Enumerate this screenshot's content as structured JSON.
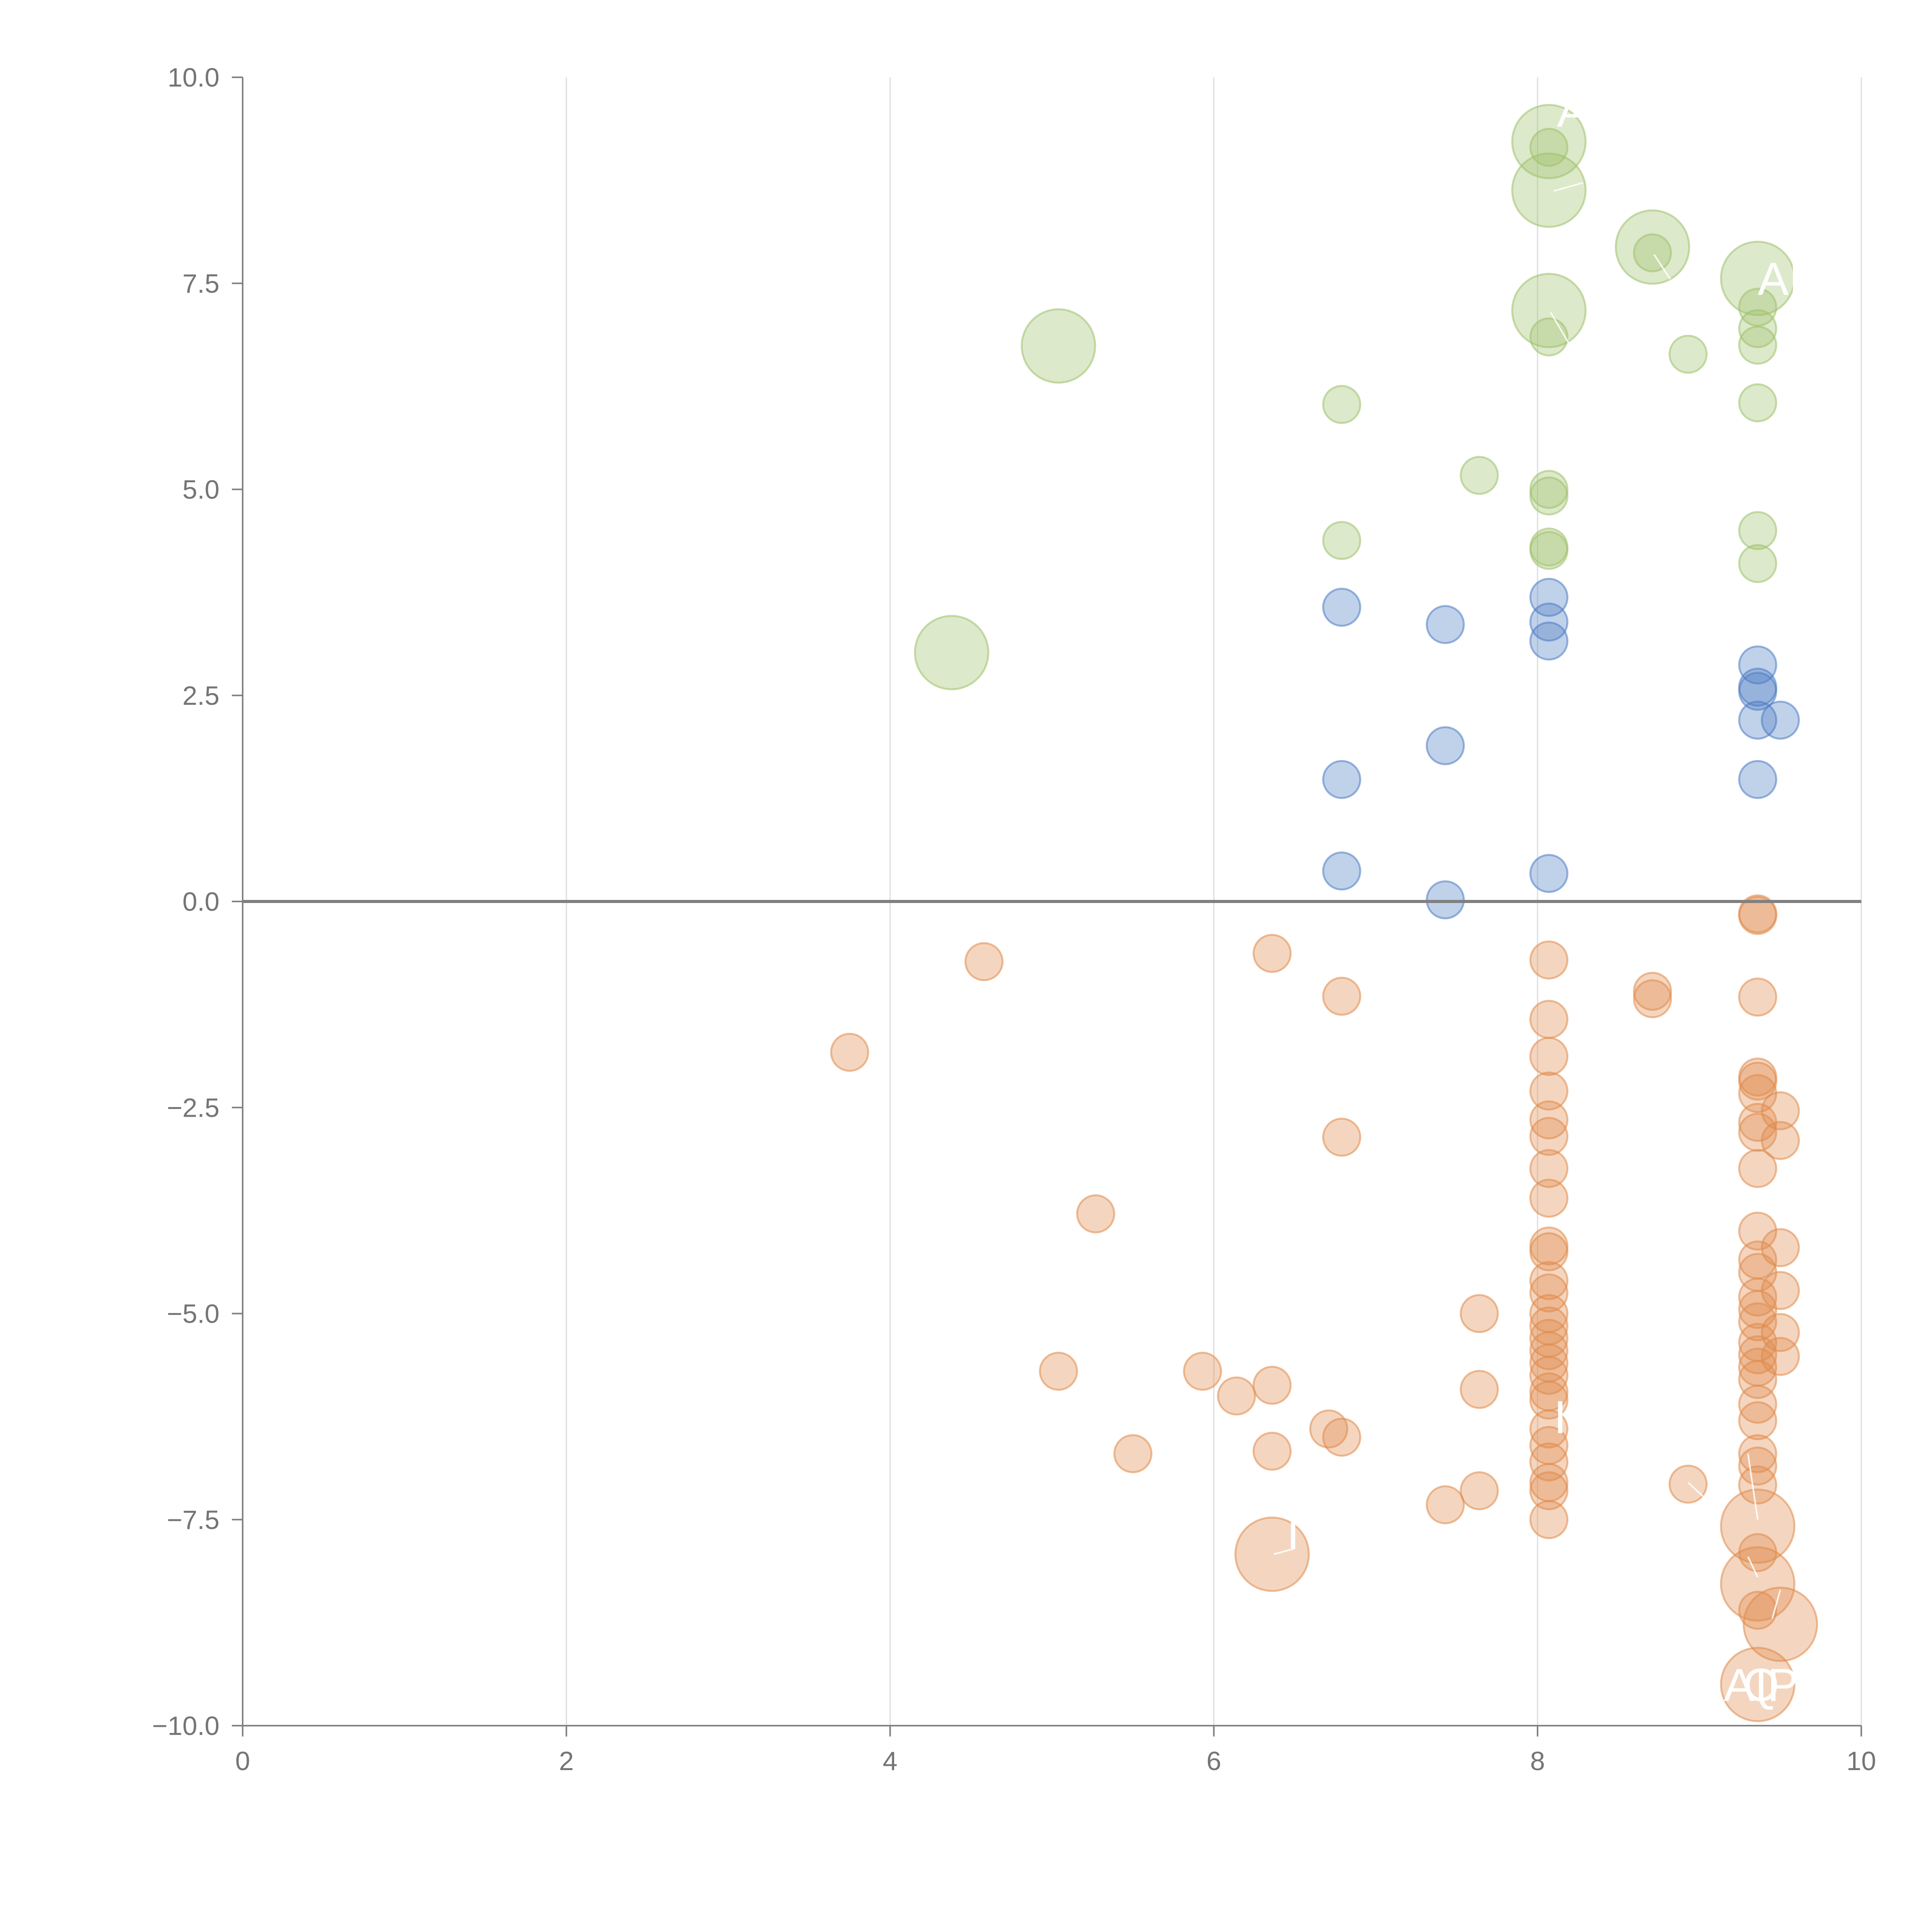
{
  "chart_data": {
    "type": "scatter",
    "title": "",
    "xlabel": "",
    "ylabel": "",
    "xlim": [
      0,
      10
    ],
    "ylim": [
      -10,
      10
    ],
    "x_ticks": [
      "0",
      "2",
      "4",
      "6",
      "8",
      "10"
    ],
    "y_ticks": [
      "10.0",
      "7.5",
      "5.0",
      "2.5",
      "0.0",
      "−2.5",
      "−5.0",
      "−7.5",
      "−10.0"
    ],
    "grid": "vertical",
    "zero_line": true,
    "series": [
      {
        "name": "green",
        "color": "#9dc16a",
        "points": [
          [
            8.07,
            9.22,
            3
          ],
          [
            8.07,
            9.15,
            1
          ],
          [
            8.07,
            8.63,
            3
          ],
          [
            8.71,
            7.94,
            3
          ],
          [
            8.71,
            7.87,
            1
          ],
          [
            9.36,
            7.56,
            3
          ],
          [
            9.36,
            7.21,
            1
          ],
          [
            8.07,
            7.17,
            3
          ],
          [
            9.36,
            6.95,
            1
          ],
          [
            8.07,
            6.85,
            1
          ],
          [
            9.36,
            6.75,
            1
          ],
          [
            5.04,
            6.74,
            3
          ],
          [
            8.93,
            6.64,
            1
          ],
          [
            6.79,
            6.03,
            1
          ],
          [
            9.36,
            6.05,
            1
          ],
          [
            7.64,
            5.17,
            1
          ],
          [
            8.07,
            5.0,
            1
          ],
          [
            8.07,
            4.92,
            1
          ],
          [
            9.36,
            4.5,
            1
          ],
          [
            6.79,
            4.38,
            1
          ],
          [
            8.07,
            4.3,
            1
          ],
          [
            8.07,
            4.26,
            1
          ],
          [
            9.36,
            4.1,
            1
          ],
          [
            4.38,
            3.02,
            3
          ]
        ]
      },
      {
        "name": "blue",
        "color": "#4a7cc2",
        "points": [
          [
            8.07,
            3.69,
            1
          ],
          [
            6.79,
            3.57,
            1
          ],
          [
            8.07,
            3.39,
            1
          ],
          [
            7.43,
            3.36,
            1
          ],
          [
            8.07,
            3.16,
            1
          ],
          [
            9.36,
            2.87,
            1
          ],
          [
            9.36,
            2.6,
            1
          ],
          [
            9.36,
            2.55,
            1
          ],
          [
            9.36,
            2.2,
            1
          ],
          [
            9.5,
            2.2,
            1
          ],
          [
            7.43,
            1.89,
            1
          ],
          [
            6.79,
            1.48,
            1
          ],
          [
            9.36,
            1.48,
            1
          ],
          [
            6.79,
            0.37,
            1
          ],
          [
            8.07,
            0.34,
            1
          ],
          [
            7.43,
            0.02,
            1
          ]
        ]
      },
      {
        "name": "orange",
        "color": "#e08a4a",
        "points": [
          [
            9.36,
            -0.15,
            1
          ],
          [
            9.36,
            -0.17,
            1
          ],
          [
            6.36,
            -0.63,
            1
          ],
          [
            4.58,
            -0.73,
            1
          ],
          [
            8.07,
            -0.71,
            1
          ],
          [
            8.71,
            -1.09,
            1
          ],
          [
            8.71,
            -1.18,
            1
          ],
          [
            6.79,
            -1.15,
            1
          ],
          [
            9.36,
            -1.16,
            1
          ],
          [
            8.07,
            -1.43,
            1
          ],
          [
            3.75,
            -1.83,
            1
          ],
          [
            8.07,
            -1.88,
            1
          ],
          [
            9.36,
            -2.13,
            1
          ],
          [
            9.36,
            -2.18,
            1
          ],
          [
            8.07,
            -2.3,
            1
          ],
          [
            9.36,
            -2.33,
            1
          ],
          [
            9.5,
            -2.54,
            1
          ],
          [
            8.07,
            -2.65,
            1
          ],
          [
            9.36,
            -2.68,
            1
          ],
          [
            9.36,
            -2.8,
            1
          ],
          [
            8.07,
            -2.85,
            1
          ],
          [
            6.79,
            -2.86,
            1
          ],
          [
            9.5,
            -2.9,
            1
          ],
          [
            8.07,
            -3.24,
            1
          ],
          [
            9.36,
            -3.24,
            1
          ],
          [
            8.07,
            -3.6,
            1
          ],
          [
            5.27,
            -3.79,
            1
          ],
          [
            9.36,
            -4.0,
            1
          ],
          [
            8.07,
            -4.18,
            1
          ],
          [
            8.07,
            -4.25,
            1
          ],
          [
            9.5,
            -4.2,
            1
          ],
          [
            9.36,
            -4.35,
            1
          ],
          [
            9.36,
            -4.5,
            1
          ],
          [
            8.07,
            -4.6,
            1
          ],
          [
            8.07,
            -4.75,
            1
          ],
          [
            9.5,
            -4.72,
            1
          ],
          [
            9.36,
            -4.8,
            1
          ],
          [
            9.36,
            -4.95,
            1
          ],
          [
            7.64,
            -5.0,
            1
          ],
          [
            8.07,
            -5.0,
            1
          ],
          [
            8.07,
            -5.15,
            1
          ],
          [
            9.36,
            -5.1,
            1
          ],
          [
            8.07,
            -5.3,
            1
          ],
          [
            9.5,
            -5.23,
            1
          ],
          [
            9.36,
            -5.35,
            1
          ],
          [
            8.07,
            -5.45,
            1
          ],
          [
            9.36,
            -5.5,
            1
          ],
          [
            8.07,
            -5.6,
            1
          ],
          [
            9.5,
            -5.52,
            1
          ],
          [
            9.36,
            -5.65,
            1
          ],
          [
            8.07,
            -5.75,
            1
          ],
          [
            9.36,
            -5.8,
            1
          ],
          [
            5.04,
            -5.7,
            1
          ],
          [
            5.93,
            -5.7,
            1
          ],
          [
            6.36,
            -5.87,
            1
          ],
          [
            7.64,
            -5.92,
            1
          ],
          [
            8.07,
            -5.95,
            1
          ],
          [
            6.14,
            -6.0,
            1
          ],
          [
            8.07,
            -6.05,
            1
          ],
          [
            9.36,
            -6.1,
            1
          ],
          [
            9.36,
            -6.3,
            1
          ],
          [
            8.07,
            -6.4,
            1
          ],
          [
            6.71,
            -6.4,
            1
          ],
          [
            6.79,
            -6.5,
            1
          ],
          [
            8.07,
            -6.6,
            1
          ],
          [
            9.36,
            -6.7,
            1
          ],
          [
            5.5,
            -6.7,
            1
          ],
          [
            6.36,
            -6.67,
            1
          ],
          [
            8.07,
            -6.8,
            1
          ],
          [
            9.36,
            -6.85,
            1
          ],
          [
            8.07,
            -7.05,
            1
          ],
          [
            8.93,
            -7.07,
            1
          ],
          [
            9.36,
            -7.08,
            1
          ],
          [
            8.07,
            -7.15,
            1
          ],
          [
            7.64,
            -7.15,
            1
          ],
          [
            7.43,
            -7.32,
            1
          ],
          [
            8.07,
            -7.5,
            1
          ],
          [
            9.36,
            -7.58,
            3
          ],
          [
            9.36,
            -7.9,
            1
          ],
          [
            6.36,
            -7.92,
            3
          ],
          [
            9.36,
            -8.28,
            3
          ],
          [
            9.36,
            -8.6,
            1
          ],
          [
            9.5,
            -8.77,
            3
          ],
          [
            9.36,
            -9.5,
            3
          ]
        ]
      }
    ],
    "annotations": [
      {
        "text": "A",
        "x": 8.12,
        "y": 9.4
      },
      {
        "text": "AI",
        "x": 9.36,
        "y": 7.36
      },
      {
        "text": "I",
        "x": 6.45,
        "y": -7.85
      },
      {
        "text": "I",
        "x": 8.1,
        "y": -6.45
      },
      {
        "text": "AI",
        "x": 9.15,
        "y": -9.7
      },
      {
        "text": "Q",
        "x": 9.27,
        "y": -9.7
      },
      {
        "text": "P",
        "x": 9.42,
        "y": -9.7
      }
    ]
  }
}
